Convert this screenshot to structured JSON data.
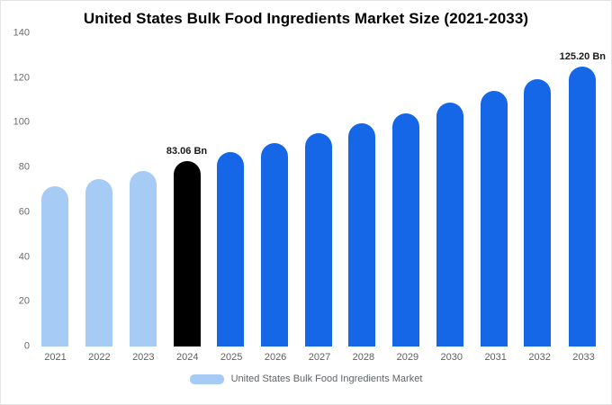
{
  "title": "United States Bulk Food Ingredients Market Size (2021-2033)",
  "legend": {
    "label": "United States Bulk Food Ingredients Market",
    "swatch_color": "#a6cbf4"
  },
  "colors": {
    "historical_bar": "#a6cbf4",
    "highlight_bar": "#000000",
    "forecast_bar": "#1667e8",
    "axis_text": "#5f5f5f",
    "title_text": "#000000"
  },
  "chart_data": {
    "type": "bar",
    "title": "United States Bulk Food Ingredients Market Size (2021-2033)",
    "unit": "Bn",
    "categories": [
      "2021",
      "2022",
      "2023",
      "2024",
      "2025",
      "2026",
      "2027",
      "2028",
      "2029",
      "2030",
      "2031",
      "2032",
      "2033"
    ],
    "values": [
      71.5,
      74.9,
      78.4,
      83.06,
      86.9,
      91.0,
      95.2,
      99.6,
      104.3,
      109.2,
      114.3,
      119.6,
      125.2
    ],
    "bar_colors": [
      "#a6cbf4",
      "#a6cbf4",
      "#a6cbf4",
      "#000000",
      "#1667e8",
      "#1667e8",
      "#1667e8",
      "#1667e8",
      "#1667e8",
      "#1667e8",
      "#1667e8",
      "#1667e8",
      "#1667e8"
    ],
    "annotations": [
      {
        "category": "2024",
        "text": "83.06 Bn"
      },
      {
        "category": "2033",
        "text": "125.20 Bn"
      }
    ],
    "ylim": [
      0,
      140
    ],
    "yticks": [
      0,
      20,
      40,
      60,
      80,
      100,
      120,
      140
    ],
    "grid": false,
    "legend_position": "bottom",
    "legend_entries": [
      "United States Bulk Food Ingredients Market"
    ]
  }
}
